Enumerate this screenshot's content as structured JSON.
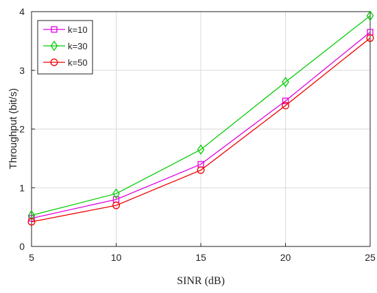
{
  "chart_data": {
    "type": "line",
    "xlabel": "SINR (dB)",
    "ylabel": "Throughput (bit/s)",
    "x": [
      5,
      10,
      15,
      20,
      25
    ],
    "xlim": [
      5,
      25
    ],
    "ylim": [
      0,
      4
    ],
    "xticks": [
      "5",
      "10",
      "15",
      "20",
      "25"
    ],
    "yticks": [
      "0",
      "1",
      "2",
      "3",
      "4"
    ],
    "grid": true,
    "legend_position": "top-left",
    "series": [
      {
        "name": "k=10",
        "color": "#e000e0",
        "marker": "square",
        "values": [
          0.48,
          0.8,
          1.4,
          2.48,
          3.65
        ]
      },
      {
        "name": "k=30",
        "color": "#00cc00",
        "marker": "diamond",
        "values": [
          0.53,
          0.9,
          1.65,
          2.8,
          3.93
        ]
      },
      {
        "name": "k=50",
        "color": "#ee0000",
        "marker": "circle",
        "values": [
          0.42,
          0.7,
          1.3,
          2.4,
          3.55
        ]
      }
    ]
  }
}
